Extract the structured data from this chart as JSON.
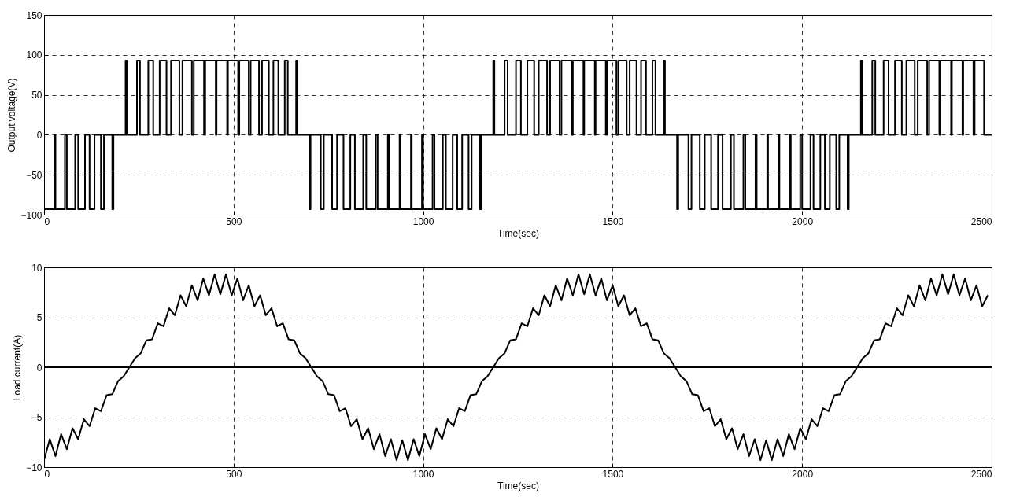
{
  "chart_data": [
    {
      "type": "step",
      "xlabel": "Time(sec)",
      "ylabel": "Output voltage(V)",
      "xlim": [
        0,
        2500
      ],
      "ylim": [
        -100,
        150
      ],
      "xticks": [
        0,
        500,
        1000,
        1500,
        2000,
        2500
      ],
      "yticks": [
        -100,
        -50,
        0,
        50,
        100,
        150
      ],
      "grid": true,
      "series": [
        {
          "color": "#000000",
          "x": [
            0,
            27,
            30,
            55,
            60,
            82,
            90,
            108,
            120,
            133,
            150,
            158,
            180,
            183,
            215,
            218,
            245,
            253,
            275,
            288,
            305,
            323,
            335,
            357,
            365,
            390,
            395,
            422,
            425,
            453,
            455,
            483,
            485,
            512,
            515,
            540,
            545,
            567,
            575,
            593,
            605,
            618,
            635,
            643,
            665,
            668,
            700,
            703,
            730,
            738,
            760,
            773,
            790,
            808,
            820,
            842,
            850,
            875,
            880,
            907,
            910,
            938,
            940,
            968,
            970,
            997,
            1000,
            1025,
            1030,
            1052,
            1060,
            1078,
            1090,
            1103,
            1120,
            1128,
            1150,
            1153,
            1185,
            1188,
            1215,
            1223,
            1245,
            1258,
            1275,
            1293,
            1305,
            1327,
            1335,
            1360,
            1365,
            1392,
            1395,
            1423,
            1425,
            1453,
            1455,
            1482,
            1485,
            1510,
            1515,
            1537,
            1545,
            1563,
            1575,
            1588,
            1605,
            1613,
            1635,
            1638,
            1670,
            1673,
            1700,
            1708,
            1730,
            1743,
            1760,
            1778,
            1790,
            1812,
            1820,
            1845,
            1850,
            1877,
            1880,
            1908,
            1910,
            1938,
            1940,
            1967,
            1970,
            1995,
            2000,
            2022,
            2030,
            2048,
            2060,
            2073,
            2090,
            2098,
            2120,
            2123,
            2155,
            2158,
            2185,
            2193,
            2215,
            2228,
            2245,
            2263,
            2275,
            2297,
            2305,
            2330,
            2335,
            2362,
            2365,
            2393,
            2395,
            2423,
            2425,
            2452,
            2455,
            2480,
            2500
          ],
          "values": [
            -93,
            0,
            -93,
            0,
            -93,
            0,
            -93,
            0,
            -93,
            0,
            -93,
            0,
            -93,
            0,
            93,
            0,
            93,
            0,
            93,
            0,
            93,
            0,
            93,
            0,
            93,
            0,
            93,
            0,
            93,
            0,
            93,
            0,
            93,
            0,
            93,
            0,
            93,
            0,
            93,
            0,
            93,
            0,
            93,
            0,
            93,
            0,
            -93,
            0,
            -93,
            0,
            -93,
            0,
            -93,
            0,
            -93,
            0,
            -93,
            0,
            -93,
            0,
            -93,
            0,
            -93,
            0,
            -93,
            0,
            -93,
            0,
            -93,
            0,
            -93,
            0,
            -93,
            0,
            -93,
            0,
            -93,
            0,
            93,
            0,
            93,
            0,
            93,
            0,
            93,
            0,
            93,
            0,
            93,
            0,
            93,
            0,
            93,
            0,
            93,
            0,
            93,
            0,
            93,
            0,
            93,
            0,
            93,
            0,
            93,
            0,
            93,
            0,
            93,
            0,
            -93,
            0,
            -93,
            0,
            -93,
            0,
            -93,
            0,
            -93,
            0,
            -93,
            0,
            -93,
            0,
            -93,
            0,
            -93,
            0,
            -93,
            0,
            -93,
            0,
            -93,
            0,
            -93,
            0,
            -93,
            0,
            -93,
            0,
            -93,
            0,
            93,
            0,
            93,
            0,
            93,
            0,
            93,
            0,
            93,
            0,
            93,
            0,
            93,
            0,
            93,
            0,
            93,
            0,
            93,
            0,
            93,
            0,
            0
          ]
        }
      ]
    },
    {
      "type": "line",
      "xlabel": "Time(sec)",
      "ylabel": "Load current(A)",
      "xlim": [
        0,
        2500
      ],
      "ylim": [
        -10,
        10
      ],
      "xticks": [
        0,
        500,
        1000,
        1500,
        2000,
        2500
      ],
      "yticks": [
        -10,
        -5,
        0,
        5,
        10
      ],
      "grid": true,
      "ref_lines": [
        {
          "axis": "y",
          "value": 0,
          "color": "#000000"
        }
      ],
      "series": [
        {
          "color": "#000000",
          "x": [
            0,
            15,
            30,
            45,
            60,
            75,
            90,
            105,
            120,
            135,
            150,
            165,
            180,
            195,
            210,
            225,
            240,
            255,
            270,
            285,
            300,
            315,
            330,
            345,
            360,
            375,
            390,
            405,
            420,
            435,
            450,
            465,
            480,
            495,
            510,
            525,
            540,
            555,
            570,
            585,
            600,
            615,
            630,
            645,
            660,
            675,
            690,
            705,
            720,
            735,
            750,
            765,
            780,
            795,
            810,
            825,
            840,
            855,
            870,
            885,
            900,
            915,
            930,
            945,
            960,
            975,
            990,
            1005,
            1020,
            1035,
            1050,
            1065,
            1080,
            1095,
            1110,
            1125,
            1140,
            1155,
            1170,
            1185,
            1200,
            1215,
            1230,
            1245,
            1260,
            1275,
            1290,
            1305,
            1320,
            1335,
            1350,
            1365,
            1380,
            1395,
            1410,
            1425,
            1440,
            1455,
            1470,
            1485,
            1500,
            1515,
            1530,
            1545,
            1560,
            1575,
            1590,
            1605,
            1620,
            1635,
            1650,
            1665,
            1680,
            1695,
            1710,
            1725,
            1740,
            1755,
            1770,
            1785,
            1800,
            1815,
            1830,
            1845,
            1860,
            1875,
            1890,
            1905,
            1920,
            1935,
            1950,
            1965,
            1980,
            1995,
            2010,
            2025,
            2040,
            2055,
            2070,
            2085,
            2100,
            2115,
            2130,
            2145,
            2160,
            2175,
            2190,
            2205,
            2220,
            2235,
            2250,
            2265,
            2280,
            2295,
            2310,
            2325,
            2340,
            2355,
            2370,
            2385,
            2400,
            2415,
            2430,
            2445,
            2460,
            2475,
            2490
          ],
          "values": [
            -9.3,
            -7.2,
            -8.9,
            -6.7,
            -8.2,
            -6.1,
            -7.2,
            -5.2,
            -5.9,
            -4.1,
            -4.4,
            -2.8,
            -2.7,
            -1.4,
            -0.9,
            0,
            0.9,
            1.4,
            2.7,
            2.8,
            4.4,
            4.1,
            5.9,
            5.2,
            7.2,
            6.1,
            8.2,
            6.7,
            8.9,
            7.2,
            9.3,
            7.3,
            9.3,
            7.2,
            8.9,
            6.7,
            8.2,
            6.1,
            7.2,
            5.2,
            5.9,
            4.1,
            4.4,
            2.8,
            2.7,
            1.4,
            0.9,
            0,
            -0.9,
            -1.4,
            -2.7,
            -2.8,
            -4.4,
            -4.1,
            -5.9,
            -5.2,
            -7.2,
            -6.1,
            -8.2,
            -6.7,
            -8.9,
            -7.2,
            -9.3,
            -7.3,
            -9.3,
            -7.2,
            -8.9,
            -6.7,
            -8.2,
            -6.1,
            -7.2,
            -5.2,
            -5.9,
            -4.1,
            -4.4,
            -2.8,
            -2.7,
            -1.4,
            -0.9,
            0,
            0.9,
            1.4,
            2.7,
            2.8,
            4.4,
            4.1,
            5.9,
            5.2,
            7.2,
            6.1,
            8.2,
            6.7,
            8.9,
            7.2,
            9.3,
            7.3,
            9.3,
            7.2,
            8.9,
            6.7,
            8.2,
            6.1,
            7.2,
            5.2,
            5.9,
            4.1,
            4.4,
            2.8,
            2.7,
            1.4,
            0.9,
            0,
            -0.9,
            -1.4,
            -2.7,
            -2.8,
            -4.4,
            -4.1,
            -5.9,
            -5.2,
            -7.2,
            -6.1,
            -8.2,
            -6.7,
            -8.9,
            -7.2,
            -9.3,
            -7.3,
            -9.3,
            -7.2,
            -8.9,
            -6.7,
            -8.2,
            -6.1,
            -7.2,
            -5.2,
            -5.9,
            -4.1,
            -4.4,
            -2.8,
            -2.7,
            -1.4,
            -0.9,
            0,
            0.9,
            1.4,
            2.7,
            2.8,
            4.4,
            4.1,
            5.9,
            5.2,
            7.2,
            6.1,
            8.2,
            6.7,
            8.9,
            7.2,
            9.3,
            7.3,
            9.3,
            7.2,
            8.9,
            6.7,
            8.2,
            6.1,
            7.2
          ]
        }
      ]
    }
  ]
}
